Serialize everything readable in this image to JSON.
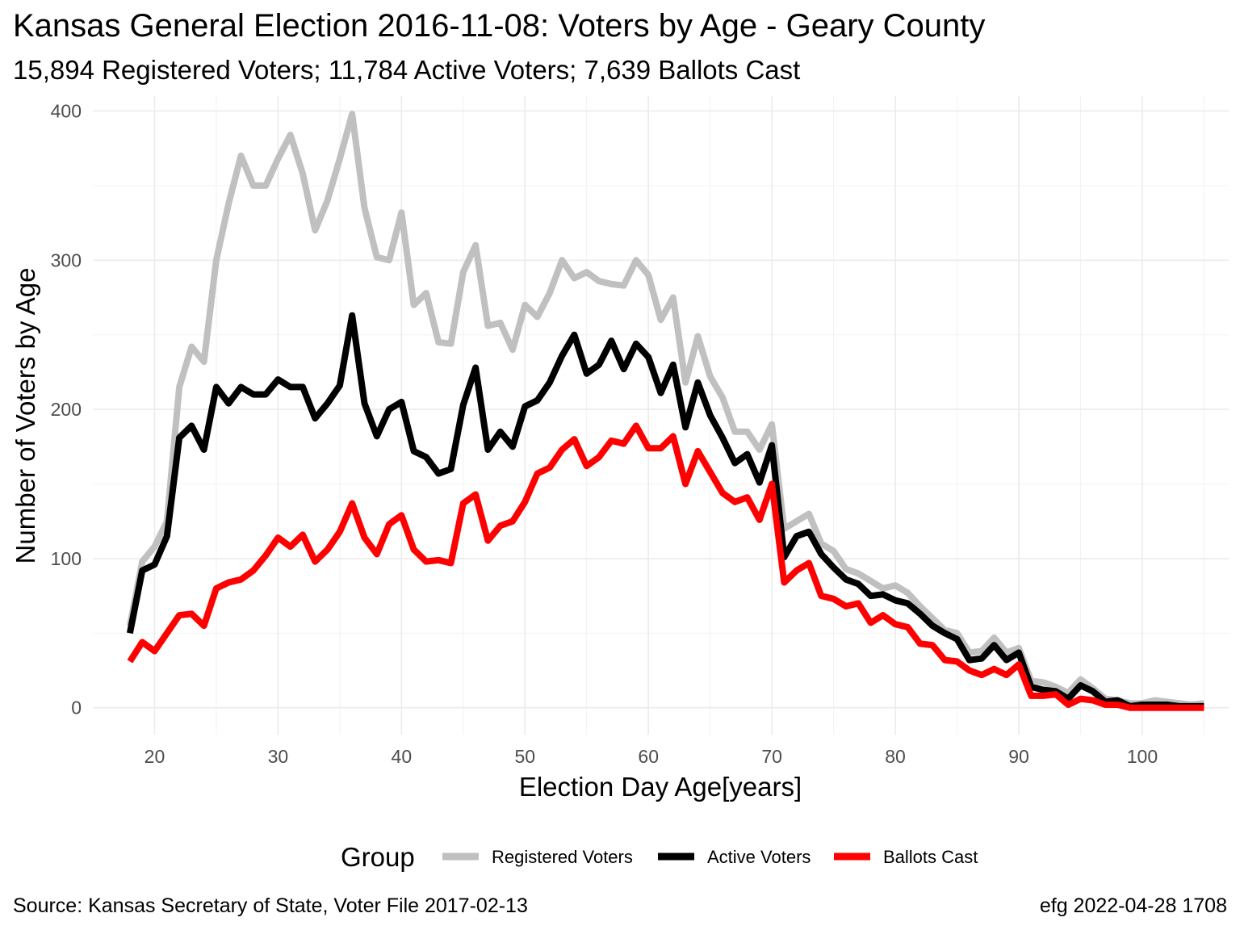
{
  "title": "Kansas General Election 2016-11-08:  Voters by Age - Geary County",
  "subtitle": "15,894 Registered Voters; 11,784 Active Voters; 7,639 Ballots Cast",
  "caption_left": "Source:  Kansas Secretary of State, Voter File  2017-02-13",
  "caption_right": "efg 2022-04-28 1708",
  "chart_data": {
    "type": "line",
    "xlabel": "Election Day Age[years]",
    "ylabel": "Number of Voters by Age",
    "xlim": [
      15,
      107
    ],
    "ylim": [
      -18,
      410
    ],
    "x_ticks": [
      20,
      30,
      40,
      50,
      60,
      70,
      80,
      90,
      100
    ],
    "x_tick_labels": [
      "20",
      "30",
      "40",
      "50",
      "60",
      "70",
      "80",
      "90",
      "100"
    ],
    "y_ticks": [
      0,
      100,
      200,
      300,
      400
    ],
    "y_tick_labels": [
      "0",
      "100",
      "200",
      "300",
      "400"
    ],
    "grid": true,
    "legend": {
      "title": "Group",
      "position": "bottom"
    },
    "x": [
      18,
      19,
      20,
      21,
      22,
      23,
      24,
      25,
      26,
      27,
      28,
      29,
      30,
      31,
      32,
      33,
      34,
      35,
      36,
      37,
      38,
      39,
      40,
      41,
      42,
      43,
      44,
      45,
      46,
      47,
      48,
      49,
      50,
      51,
      52,
      53,
      54,
      55,
      56,
      57,
      58,
      59,
      60,
      61,
      62,
      63,
      64,
      65,
      66,
      67,
      68,
      69,
      70,
      71,
      72,
      73,
      74,
      75,
      76,
      77,
      78,
      79,
      80,
      81,
      82,
      83,
      84,
      85,
      86,
      87,
      88,
      89,
      90,
      91,
      92,
      93,
      94,
      95,
      96,
      97,
      98,
      99,
      100,
      101,
      102,
      103,
      104,
      105
    ],
    "series": [
      {
        "name": "Registered Voters",
        "color": "#c0c0c0",
        "values": [
          55,
          98,
          108,
          125,
          215,
          242,
          232,
          300,
          338,
          370,
          350,
          350,
          368,
          384,
          358,
          320,
          340,
          368,
          398,
          335,
          302,
          300,
          332,
          270,
          278,
          245,
          244,
          292,
          310,
          256,
          258,
          240,
          270,
          262,
          278,
          300,
          288,
          292,
          286,
          284,
          283,
          300,
          290,
          260,
          275,
          218,
          249,
          222,
          208,
          185,
          185,
          173,
          190,
          120,
          125,
          130,
          110,
          105,
          93,
          90,
          85,
          80,
          82,
          77,
          68,
          60,
          52,
          50,
          37,
          38,
          47,
          37,
          40,
          18,
          17,
          14,
          10,
          19,
          13,
          6,
          5,
          3,
          3,
          5,
          4,
          3,
          2,
          3
        ]
      },
      {
        "name": "Active Voters",
        "color": "#000000",
        "values": [
          50,
          92,
          96,
          115,
          181,
          189,
          173,
          215,
          204,
          215,
          210,
          210,
          220,
          215,
          215,
          194,
          204,
          216,
          263,
          204,
          182,
          200,
          205,
          172,
          168,
          157,
          160,
          203,
          228,
          173,
          185,
          175,
          202,
          206,
          218,
          236,
          250,
          224,
          230,
          246,
          227,
          244,
          235,
          211,
          230,
          188,
          218,
          196,
          181,
          164,
          170,
          151,
          176,
          101,
          115,
          118,
          103,
          94,
          86,
          83,
          75,
          76,
          72,
          70,
          63,
          55,
          50,
          46,
          32,
          33,
          42,
          32,
          37,
          14,
          12,
          11,
          6,
          15,
          11,
          4,
          5,
          1,
          2,
          2,
          2,
          1,
          1,
          1
        ]
      },
      {
        "name": "Ballots Cast",
        "color": "#ff0000",
        "values": [
          31,
          44,
          38,
          50,
          62,
          63,
          55,
          80,
          84,
          86,
          92,
          102,
          114,
          108,
          116,
          98,
          106,
          118,
          137,
          114,
          103,
          123,
          129,
          106,
          98,
          99,
          97,
          137,
          143,
          112,
          122,
          125,
          138,
          157,
          161,
          173,
          180,
          162,
          168,
          179,
          177,
          189,
          174,
          174,
          182,
          150,
          172,
          158,
          144,
          138,
          141,
          126,
          150,
          84,
          92,
          97,
          75,
          73,
          68,
          70,
          57,
          62,
          56,
          54,
          43,
          42,
          32,
          31,
          25,
          22,
          26,
          22,
          29,
          8,
          8,
          9,
          2,
          6,
          5,
          2,
          2,
          0,
          0,
          0,
          0,
          0,
          0,
          0
        ]
      }
    ]
  }
}
